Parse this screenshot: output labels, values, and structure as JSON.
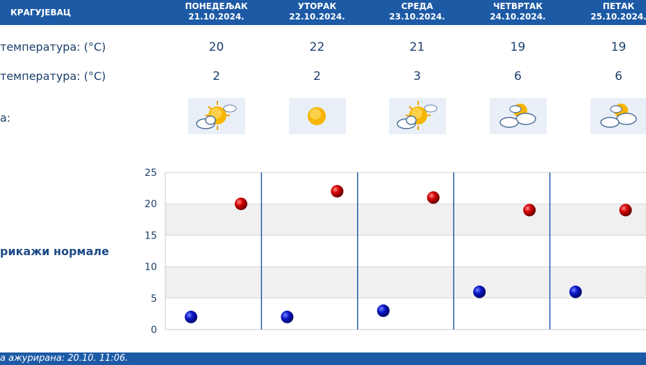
{
  "header": {
    "city": "КРАГУЈЕВАЦ",
    "days": [
      {
        "name": "ПОНЕДЕЉАК",
        "date": "21.10.2024."
      },
      {
        "name": "УТОРАК",
        "date": "22.10.2024."
      },
      {
        "name": "СРЕДА",
        "date": "23.10.2024."
      },
      {
        "name": "ЧЕТВРТАК",
        "date": "24.10.2024."
      },
      {
        "name": "ПЕТАК",
        "date": "25.10.2024."
      }
    ]
  },
  "rows": {
    "max_label": "температура: (°C)",
    "max_values": [
      "20",
      "22",
      "21",
      "19",
      "19"
    ],
    "min_label": "температура: (°C)",
    "min_values": [
      "2",
      "2",
      "3",
      "6",
      "6"
    ],
    "weather_label": "а:",
    "weather_icons": [
      "sun-cloud-icon",
      "sun-icon",
      "sun-cloud-icon",
      "cloud-sun-icon",
      "cloud-sun-icon"
    ]
  },
  "links": {
    "show_normals": "рикажи нормале"
  },
  "footer": {
    "updated": "а ажурирана:  20.10. 11:06."
  },
  "colors": {
    "header_bg": "#1d5aa6",
    "max_marker": "#c40000",
    "min_marker": "#0010b0",
    "text": "#1a3f6c"
  },
  "chart_data": {
    "type": "scatter",
    "categories": [
      "21.10.2024.",
      "22.10.2024.",
      "23.10.2024.",
      "24.10.2024.",
      "25.10.2024."
    ],
    "series": [
      {
        "values": [
          20,
          22,
          21,
          19,
          19
        ]
      },
      {
        "values": [
          2,
          2,
          3,
          6,
          6
        ]
      }
    ],
    "ylim": [
      0,
      25
    ],
    "yticks": [
      "0",
      "5",
      "10",
      "15",
      "20",
      "25"
    ],
    "grid": true
  }
}
